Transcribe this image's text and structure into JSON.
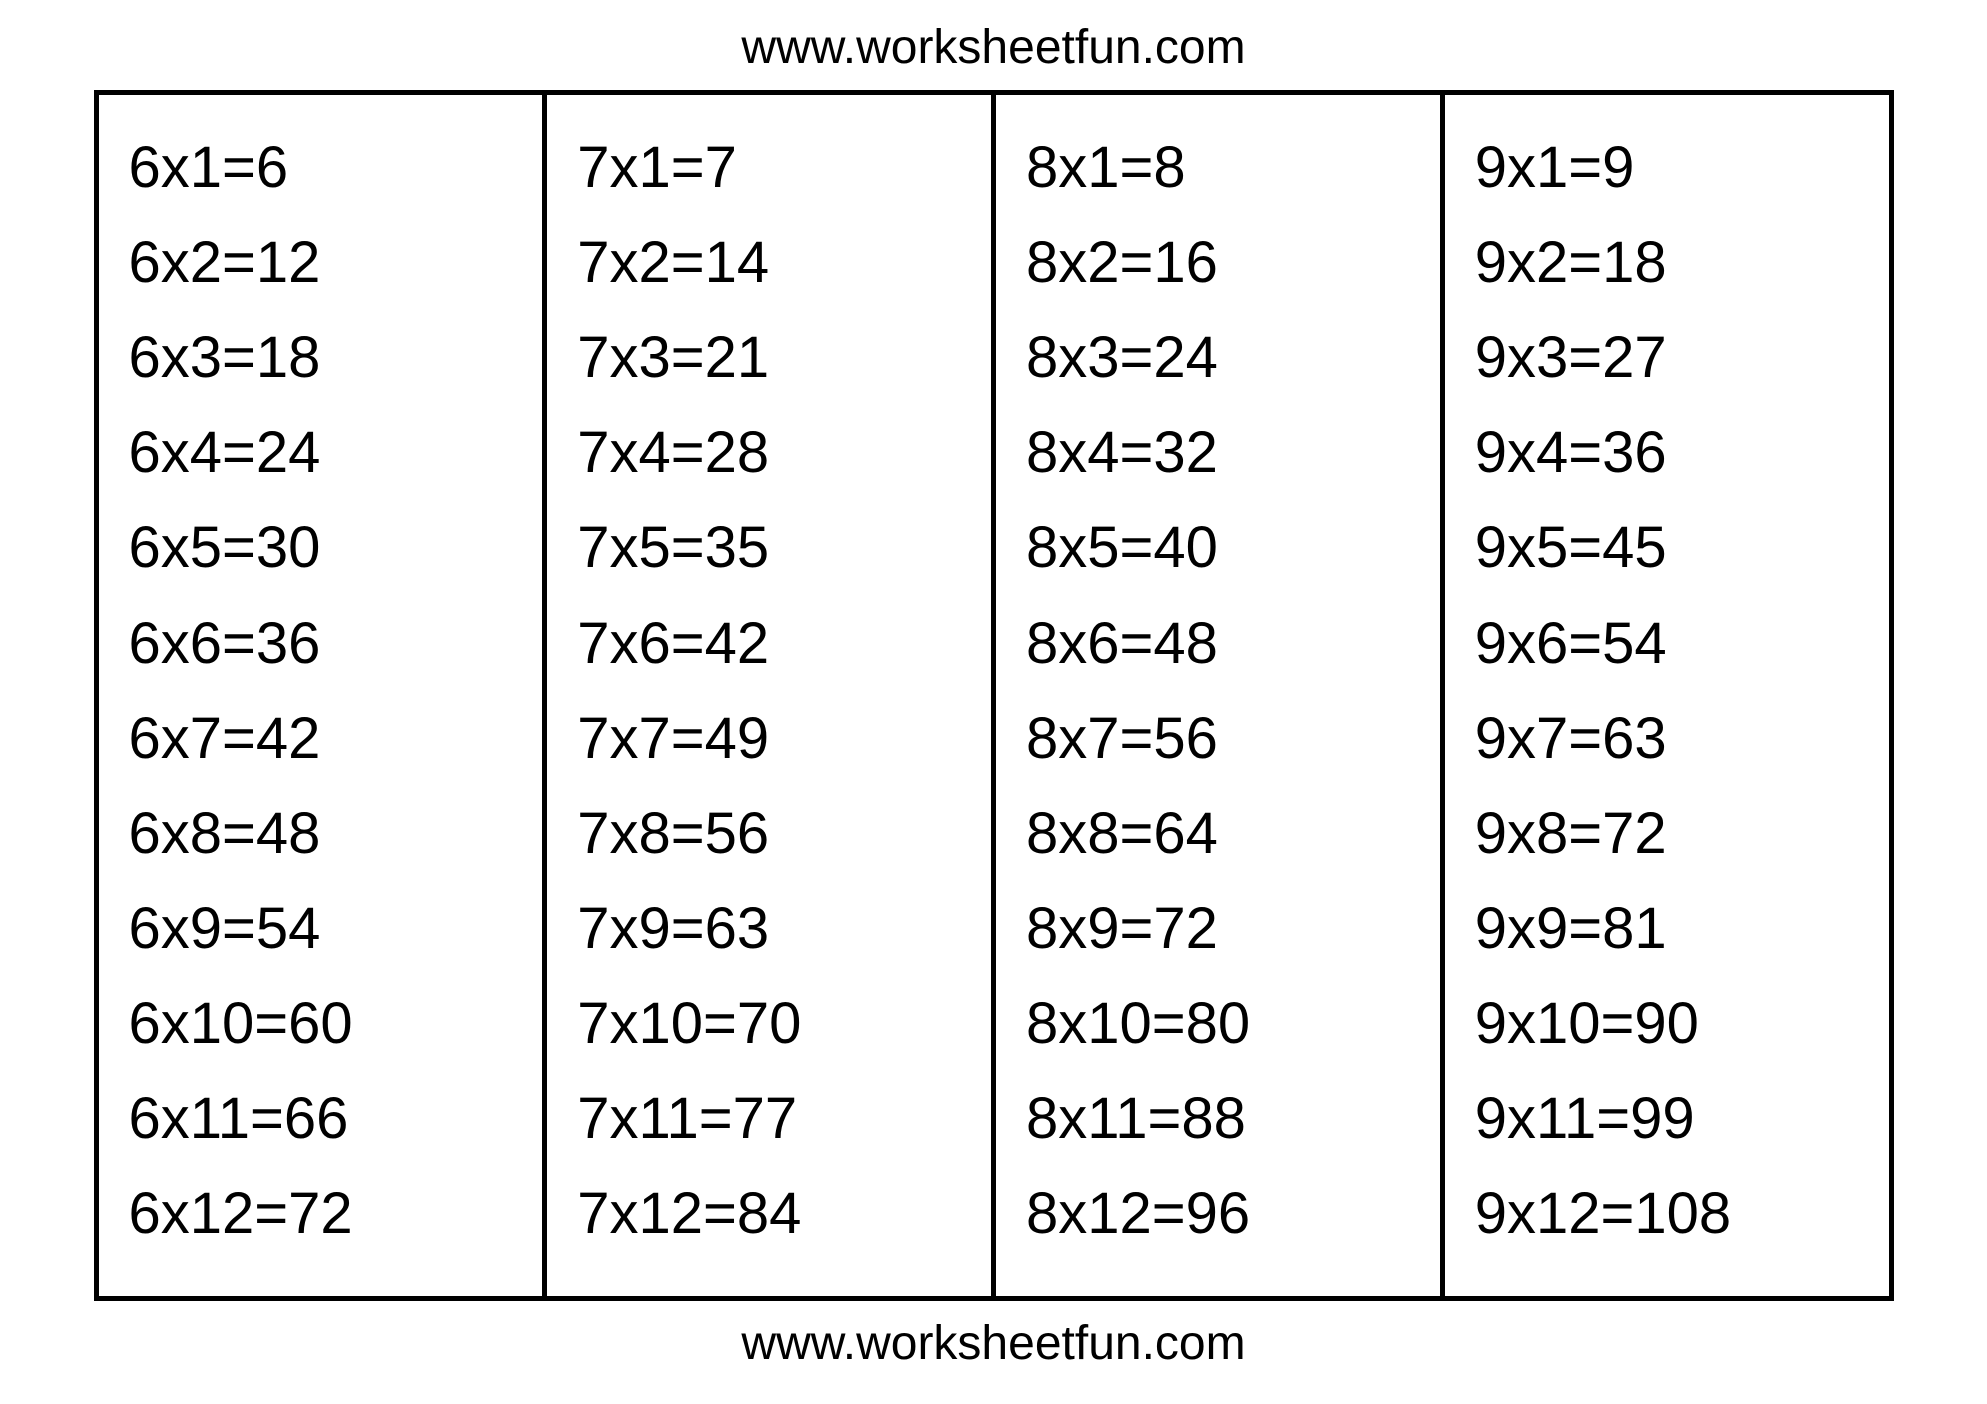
{
  "header": {
    "text": "www.worksheetfun.com"
  },
  "footer": {
    "text": "www.worksheetfun.com"
  },
  "table": {
    "type": "table",
    "border_color": "#000000",
    "border_width": 5,
    "background_color": "#ffffff",
    "text_color": "#000000",
    "font_family": "Comic Sans MS",
    "cell_fontsize": 58,
    "header_footer_fontsize": 48,
    "line_height": 1.64,
    "columns": [
      {
        "multiplier": 6,
        "rows": [
          "6x1=6",
          "6x2=12",
          "6x3=18",
          "6x4=24",
          "6x5=30",
          "6x6=36",
          "6x7=42",
          "6x8=48",
          "6x9=54",
          "6x10=60",
          "6x11=66",
          "6x12=72"
        ]
      },
      {
        "multiplier": 7,
        "rows": [
          "7x1=7",
          "7x2=14",
          "7x3=21",
          "7x4=28",
          "7x5=35",
          "7x6=42",
          "7x7=49",
          "7x8=56",
          "7x9=63",
          "7x10=70",
          "7x11=77",
          "7x12=84"
        ]
      },
      {
        "multiplier": 8,
        "rows": [
          "8x1=8",
          "8x2=16",
          "8x3=24",
          "8x4=32",
          "8x5=40",
          "8x6=48",
          "8x7=56",
          "8x8=64",
          "8x9=72",
          "8x10=80",
          "8x11=88",
          "8x12=96"
        ]
      },
      {
        "multiplier": 9,
        "rows": [
          "9x1=9",
          "9x2=18",
          "9x3=27",
          "9x4=36",
          "9x5=45",
          "9x6=54",
          "9x7=63",
          "9x8=72",
          "9x9=81",
          "9x10=90",
          "9x11=99",
          "9x12=108"
        ]
      }
    ]
  }
}
